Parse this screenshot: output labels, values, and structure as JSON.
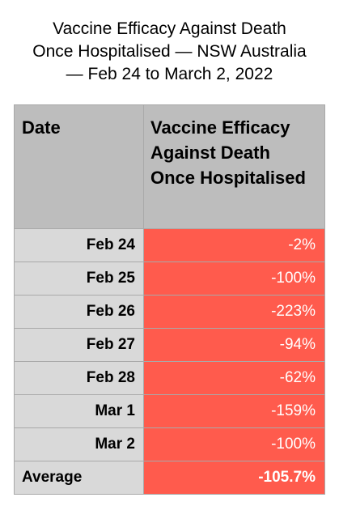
{
  "title": {
    "line1": "Vaccine Efficacy Against Death",
    "line2": "Once Hospitalised — NSW Australia",
    "line3": "— Feb 24 to March 2, 2022"
  },
  "table": {
    "col_date_header": "Date",
    "col_value_header": "Vaccine Efficacy Against Death Once Hospitalised",
    "average_label": "Average",
    "average_value": "-105.7%"
  },
  "chart_data": {
    "type": "table",
    "title": "Vaccine Efficacy Against Death Once Hospitalised — NSW Australia — Feb 24 to March 2, 2022",
    "columns": [
      "Date",
      "Vaccine Efficacy Against Death Once Hospitalised"
    ],
    "rows": [
      {
        "date": "Feb 24",
        "value": -2,
        "label": "-2%"
      },
      {
        "date": "Feb 25",
        "value": -100,
        "label": "-100%"
      },
      {
        "date": "Feb 26",
        "value": -223,
        "label": "-223%"
      },
      {
        "date": "Feb 27",
        "value": -94,
        "label": "-94%"
      },
      {
        "date": "Feb 28",
        "value": -62,
        "label": "-62%"
      },
      {
        "date": "Mar 1",
        "value": -159,
        "label": "-159%"
      },
      {
        "date": "Mar 2",
        "value": -100,
        "label": "-100%"
      }
    ],
    "average": {
      "label": "Average",
      "value": -105.7,
      "display": "-105.7%"
    }
  },
  "colors": {
    "header_bg": "#bdbdbd",
    "date_cell_bg": "#d9d9d9",
    "value_cell_bg": "#ff5b4d",
    "value_text": "#ffffff",
    "border": "#a9a9a9"
  }
}
